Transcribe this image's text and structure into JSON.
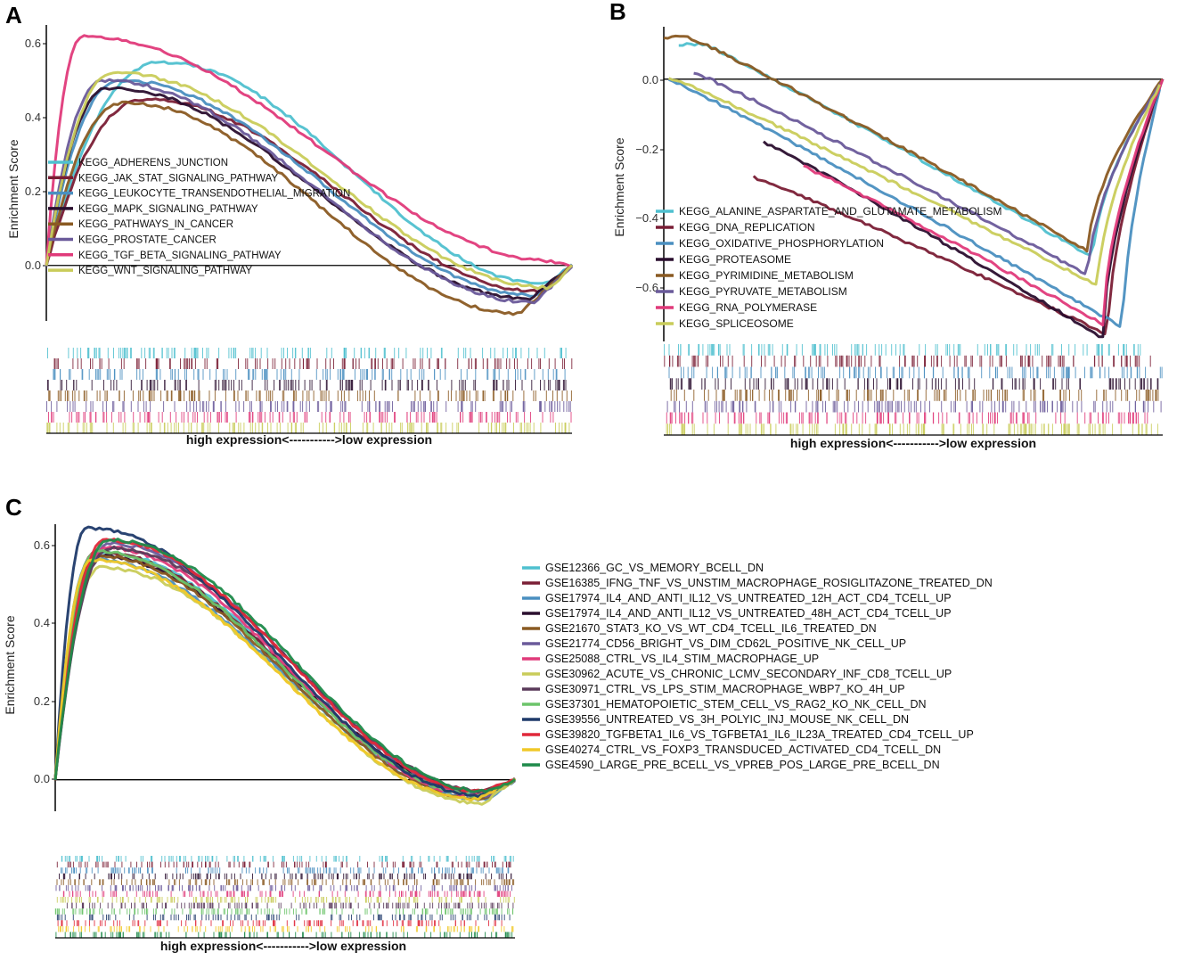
{
  "chart_data": [
    {
      "panel_label": "A",
      "type": "line",
      "ylabel": "Enrichment Score",
      "xlabel": "high expression<----------->low expression",
      "ylim": [
        -0.15,
        0.65
      ],
      "yticks": [
        "0.0",
        "0.2",
        "0.4",
        "0.6"
      ],
      "zero_line": true,
      "legend": "left-center, overlapping curves",
      "x_range": [
        0,
        100
      ],
      "series": [
        {
          "name": "KEGG_ADHERENS_JUNCTION",
          "color": "#4fc0cf",
          "peak_x": 22,
          "peak": 0.55,
          "min_x": 95,
          "min": -0.05
        },
        {
          "name": "KEGG_JAK_STAT_SIGNALING_PATHWAY",
          "color": "#7a1e35",
          "peak_x": 19,
          "peak": 0.45,
          "min_x": 94,
          "min": -0.07
        },
        {
          "name": "KEGG_LEUKOCYTE_TRANSENDOTHELIAL_MIGRATION",
          "color": "#4a8fc0",
          "peak_x": 14,
          "peak": 0.5,
          "min_x": 93,
          "min": -0.08
        },
        {
          "name": "KEGG_MAPK_SIGNALING_PATHWAY",
          "color": "#2a0e2e",
          "peak_x": 12,
          "peak": 0.48,
          "min_x": 92,
          "min": -0.09
        },
        {
          "name": "KEGG_PATHWAYS_IN_CANCER",
          "color": "#8a5a22",
          "peak_x": 15,
          "peak": 0.44,
          "min_x": 90,
          "min": -0.13
        },
        {
          "name": "KEGG_PROSTATE_CANCER",
          "color": "#6a5a9a",
          "peak_x": 11,
          "peak": 0.5,
          "min_x": 93,
          "min": -0.1
        },
        {
          "name": "KEGG_TGF_BETA_SIGNALING_PATHWAY",
          "color": "#e03a7a",
          "peak_x": 7,
          "peak": 0.62,
          "min_x": 98,
          "min": 0.01
        },
        {
          "name": "KEGG_WNT_SIGNALING_PATHWAY",
          "color": "#c9cc5a",
          "peak_x": 13,
          "peak": 0.52,
          "min_x": 96,
          "min": -0.06
        }
      ]
    },
    {
      "panel_label": "B",
      "type": "line",
      "ylabel": "Enrichment Score",
      "xlabel": "high expression<----------->low expression",
      "ylim": [
        -0.75,
        0.15
      ],
      "yticks": [
        "0.0",
        "−0.2",
        "−0.4",
        "−0.6"
      ],
      "zero_line": true,
      "legend": "left-bottom, overlapping curves",
      "x_range": [
        0,
        100
      ],
      "series": [
        {
          "name": "KEGG_ALANINE_ASPARTATE_AND_GLUTAMATE_METABOLISM",
          "color": "#4fc0cf",
          "start_x": 3,
          "peak_x": 8,
          "peak": 0.1,
          "min_x": 86,
          "min": -0.51
        },
        {
          "name": "KEGG_DNA_REPLICATION",
          "color": "#7a1e35",
          "start_x": 18,
          "peak_x": 18,
          "peak": -0.28,
          "min_x": 89,
          "min": -0.73
        },
        {
          "name": "KEGG_OXIDATIVE_PHOSPHORYLATION",
          "color": "#4a8fc0",
          "start_x": 1,
          "peak_x": 1,
          "peak": 0.0,
          "min_x": 92,
          "min": -0.71
        },
        {
          "name": "KEGG_PROTEASOME",
          "color": "#2a0e2e",
          "start_x": 20,
          "peak_x": 20,
          "peak": -0.18,
          "min_x": 88,
          "min": -0.74
        },
        {
          "name": "KEGG_PYRIMIDINE_METABOLISM",
          "color": "#8a5a22",
          "start_x": 0,
          "peak_x": 5,
          "peak": 0.12,
          "min_x": 85,
          "min": -0.49
        },
        {
          "name": "KEGG_PYRUVATE_METABOLISM",
          "color": "#6a5a9a",
          "start_x": 6,
          "peak_x": 6,
          "peak": 0.02,
          "min_x": 85,
          "min": -0.56
        },
        {
          "name": "KEGG_RNA_POLYMERASE",
          "color": "#e03a7a",
          "start_x": 28,
          "peak_x": 28,
          "peak": -0.25,
          "min_x": 88,
          "min": -0.7
        },
        {
          "name": "KEGG_SPLICEOSOME",
          "color": "#c9cc5a",
          "start_x": 1,
          "peak_x": 2,
          "peak": 0.0,
          "min_x": 87,
          "min": -0.59
        }
      ]
    },
    {
      "panel_label": "C",
      "type": "line",
      "ylabel": "Enrichment Score",
      "xlabel": "high expression<----------->low expression",
      "ylim": [
        -0.08,
        0.65
      ],
      "yticks": [
        "0.0",
        "0.2",
        "0.4",
        "0.6"
      ],
      "zero_line": true,
      "legend": "right, outside plot",
      "x_range": [
        0,
        100
      ],
      "series": [
        {
          "name": "GSE12366_GC_VS_MEMORY_BCELL_DN",
          "color": "#4fc0cf",
          "peak_x": 10,
          "peak": 0.58,
          "min_x": 93,
          "min": -0.04
        },
        {
          "name": "GSE16385_IFNG_TNF_VS_UNSTIM_MACROPHAGE_ROSIGLITAZONE_TREATED_DN",
          "color": "#7a1e35",
          "peak_x": 9,
          "peak": 0.58,
          "min_x": 93,
          "min": -0.03
        },
        {
          "name": "GSE17974_IL4_AND_ANTI_IL12_VS_UNTREATED_12H_ACT_CD4_TCELL_UP",
          "color": "#4a8fc0",
          "peak_x": 8,
          "peak": 0.56,
          "min_x": 94,
          "min": -0.05
        },
        {
          "name": "GSE17974_IL4_AND_ANTI_IL12_VS_UNTREATED_48H_ACT_CD4_TCELL_UP",
          "color": "#2a0e2e",
          "peak_x": 9,
          "peak": 0.57,
          "min_x": 94,
          "min": -0.04
        },
        {
          "name": "GSE21670_STAT3_KO_VS_WT_CD4_TCELL_IL6_TREATED_DN",
          "color": "#8a5a22",
          "peak_x": 9,
          "peak": 0.57,
          "min_x": 93,
          "min": -0.05
        },
        {
          "name": "GSE21774_CD56_BRIGHT_VS_DIM_CD62L_POSITIVE_NK_CELL_UP",
          "color": "#6a5a9a",
          "peak_x": 12,
          "peak": 0.6,
          "min_x": 94,
          "min": -0.04
        },
        {
          "name": "GSE25088_CTRL_VS_IL4_STIM_MACROPHAGE_UP",
          "color": "#e03a7a",
          "peak_x": 11,
          "peak": 0.59,
          "min_x": 92,
          "min": -0.04
        },
        {
          "name": "GSE30962_ACUTE_VS_CHRONIC_LCMV_SECONDARY_INF_CD8_TCELL_UP",
          "color": "#c9cc5a",
          "peak_x": 10,
          "peak": 0.54,
          "min_x": 93,
          "min": -0.06
        },
        {
          "name": "GSE30971_CTRL_VS_LPS_STIM_MACROPHAGE_WBP7_KO_4H_UP",
          "color": "#5a3a5a",
          "peak_x": 12,
          "peak": 0.59,
          "min_x": 94,
          "min": -0.03
        },
        {
          "name": "GSE37301_HEMATOPOIETIC_STEM_CELL_VS_RAG2_KO_NK_CELL_DN",
          "color": "#6cc46a",
          "peak_x": 9,
          "peak": 0.58,
          "min_x": 93,
          "min": -0.04
        },
        {
          "name": "GSE39556_UNTREATED_VS_3H_POLYIC_INJ_MOUSE_NK_CELL_DN",
          "color": "#1f3a6a",
          "peak_x": 7,
          "peak": 0.64,
          "min_x": 93,
          "min": -0.04
        },
        {
          "name": "GSE39820_TGFBETA1_IL6_VS_TGFBETA1_IL6_IL23A_TREATED_CD4_TCELL_UP",
          "color": "#e0283a",
          "peak_x": 11,
          "peak": 0.61,
          "min_x": 93,
          "min": -0.03
        },
        {
          "name": "GSE40274_CTRL_VS_FOXP3_TRANSDUCED_ACTIVATED_CD4_TCELL_DN",
          "color": "#f0c828",
          "peak_x": 8,
          "peak": 0.56,
          "min_x": 92,
          "min": -0.05
        },
        {
          "name": "GSE4590_LARGE_PRE_BCELL_VS_VPREB_POS_LARGE_PRE_BCELL_DN",
          "color": "#1e8a4a",
          "peak_x": 12,
          "peak": 0.61,
          "min_x": 94,
          "min": -0.03
        }
      ]
    }
  ]
}
